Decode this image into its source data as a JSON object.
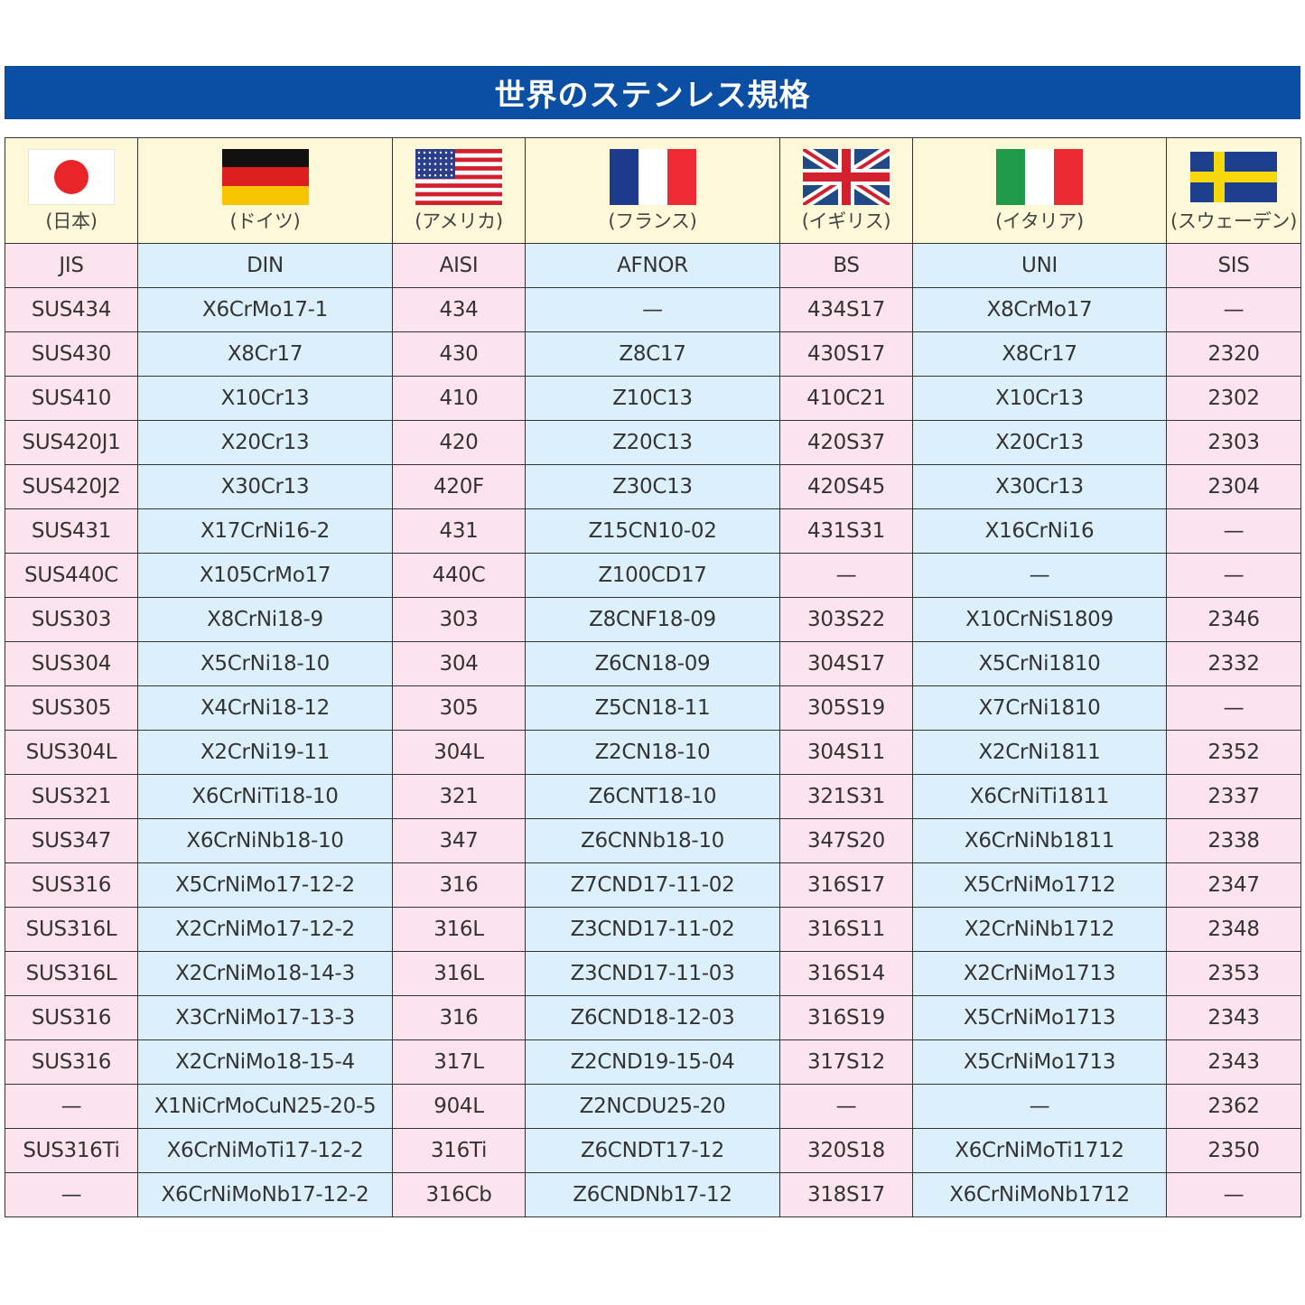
{
  "title": "世界のステンレス規格",
  "colors": {
    "title_bg": "#0a4fa3",
    "header_bg": "#fdf8d8",
    "pink": "#fde3ee",
    "blue": "#dcf0fb"
  },
  "columns": [
    {
      "country": "(日本)",
      "flag": "japan-flag",
      "standard": "JIS",
      "tint": "pink"
    },
    {
      "country": "(ドイツ)",
      "flag": "germany-flag",
      "standard": "DIN",
      "tint": "blue"
    },
    {
      "country": "(アメリカ)",
      "flag": "usa-flag",
      "standard": "AISI",
      "tint": "pink"
    },
    {
      "country": "(フランス)",
      "flag": "france-flag",
      "standard": "AFNOR",
      "tint": "blue"
    },
    {
      "country": "(イギリス)",
      "flag": "uk-flag",
      "standard": "BS",
      "tint": "pink"
    },
    {
      "country": "(イタリア)",
      "flag": "italy-flag",
      "standard": "UNI",
      "tint": "blue"
    },
    {
      "country": "(スウェーデン)",
      "flag": "sweden-flag",
      "standard": "SIS",
      "tint": "pink"
    }
  ],
  "rows": [
    [
      "SUS434",
      "X6CrMo17-1",
      "434",
      "—",
      "434S17",
      "X8CrMo17",
      "—"
    ],
    [
      "SUS430",
      "X8Cr17",
      "430",
      "Z8C17",
      "430S17",
      "X8Cr17",
      "2320"
    ],
    [
      "SUS410",
      "X10Cr13",
      "410",
      "Z10C13",
      "410C21",
      "X10Cr13",
      "2302"
    ],
    [
      "SUS420J1",
      "X20Cr13",
      "420",
      "Z20C13",
      "420S37",
      "X20Cr13",
      "2303"
    ],
    [
      "SUS420J2",
      "X30Cr13",
      "420F",
      "Z30C13",
      "420S45",
      "X30Cr13",
      "2304"
    ],
    [
      "SUS431",
      "X17CrNi16-2",
      "431",
      "Z15CN10-02",
      "431S31",
      "X16CrNi16",
      "—"
    ],
    [
      "SUS440C",
      "X105CrMo17",
      "440C",
      "Z100CD17",
      "—",
      "—",
      "—"
    ],
    [
      "SUS303",
      "X8CrNi18-9",
      "303",
      "Z8CNF18-09",
      "303S22",
      "X10CrNiS1809",
      "2346"
    ],
    [
      "SUS304",
      "X5CrNi18-10",
      "304",
      "Z6CN18-09",
      "304S17",
      "X5CrNi1810",
      "2332"
    ],
    [
      "SUS305",
      "X4CrNi18-12",
      "305",
      "Z5CN18-11",
      "305S19",
      "X7CrNi1810",
      "—"
    ],
    [
      "SUS304L",
      "X2CrNi19-11",
      "304L",
      "Z2CN18-10",
      "304S11",
      "X2CrNi1811",
      "2352"
    ],
    [
      "SUS321",
      "X6CrNiTi18-10",
      "321",
      "Z6CNT18-10",
      "321S31",
      "X6CrNiTi1811",
      "2337"
    ],
    [
      "SUS347",
      "X6CrNiNb18-10",
      "347",
      "Z6CNNb18-10",
      "347S20",
      "X6CrNiNb1811",
      "2338"
    ],
    [
      "SUS316",
      "X5CrNiMo17-12-2",
      "316",
      "Z7CND17-11-02",
      "316S17",
      "X5CrNiMo1712",
      "2347"
    ],
    [
      "SUS316L",
      "X2CrNiMo17-12-2",
      "316L",
      "Z3CND17-11-02",
      "316S11",
      "X2CrNiNb1712",
      "2348"
    ],
    [
      "SUS316L",
      "X2CrNiMo18-14-3",
      "316L",
      "Z3CND17-11-03",
      "316S14",
      "X2CrNiMo1713",
      "2353"
    ],
    [
      "SUS316",
      "X3CrNiMo17-13-3",
      "316",
      "Z6CND18-12-03",
      "316S19",
      "X5CrNiMo1713",
      "2343"
    ],
    [
      "SUS316",
      "X2CrNiMo18-15-4",
      "317L",
      "Z2CND19-15-04",
      "317S12",
      "X5CrNiMo1713",
      "2343"
    ],
    [
      "—",
      "X1NiCrMoCuN25-20-5",
      "904L",
      "Z2NCDU25-20",
      "—",
      "—",
      "2362"
    ],
    [
      "SUS316Ti",
      "X6CrNiMoTi17-12-2",
      "316Ti",
      "Z6CNDT17-12",
      "320S18",
      "X6CrNiMoTi1712",
      "2350"
    ],
    [
      "—",
      "X6CrNiMoNb17-12-2",
      "316Cb",
      "Z6CNDNb17-12",
      "318S17",
      "X6CrNiMoNb1712",
      "—"
    ]
  ]
}
